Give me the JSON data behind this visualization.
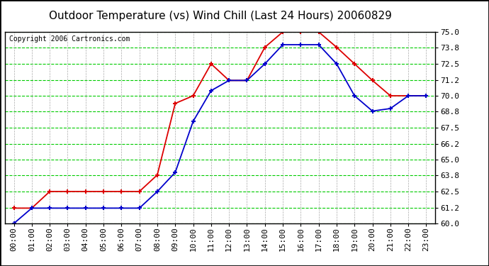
{
  "title": "Outdoor Temperature (vs) Wind Chill (Last 24 Hours) 20060829",
  "copyright": "Copyright 2006 Cartronics.com",
  "hours": [
    "00:00",
    "01:00",
    "02:00",
    "03:00",
    "04:00",
    "05:00",
    "06:00",
    "07:00",
    "08:00",
    "09:00",
    "10:00",
    "11:00",
    "12:00",
    "13:00",
    "14:00",
    "15:00",
    "16:00",
    "17:00",
    "18:00",
    "19:00",
    "20:00",
    "21:00",
    "22:00",
    "23:00"
  ],
  "outdoor_temp": [
    61.2,
    61.2,
    62.5,
    62.5,
    62.5,
    62.5,
    62.5,
    62.5,
    63.8,
    69.4,
    70.0,
    72.5,
    71.2,
    71.2,
    73.8,
    75.0,
    75.0,
    75.0,
    73.8,
    72.5,
    71.2,
    70.0,
    70.0,
    70.0
  ],
  "wind_chill": [
    60.0,
    61.2,
    61.2,
    61.2,
    61.2,
    61.2,
    61.2,
    61.2,
    62.5,
    64.0,
    68.0,
    70.4,
    71.2,
    71.2,
    72.5,
    74.0,
    74.0,
    74.0,
    72.5,
    70.0,
    68.8,
    69.0,
    70.0,
    70.0
  ],
  "temp_color": "#dd0000",
  "chill_color": "#0000cc",
  "marker": "+",
  "markersize": 5,
  "markeredgewidth": 1.5,
  "linewidth": 1.3,
  "ylim": [
    60.0,
    75.0
  ],
  "yticks": [
    60.0,
    61.2,
    62.5,
    63.8,
    65.0,
    66.2,
    67.5,
    68.8,
    70.0,
    71.2,
    72.5,
    73.8,
    75.0
  ],
  "bg_color": "#ffffff",
  "plot_bg": "#ffffff",
  "grid_h_color": "#00cc00",
  "grid_v_color": "#aaaaaa",
  "title_fontsize": 11,
  "copyright_fontsize": 7,
  "tick_fontsize": 8,
  "fig_width": 6.9,
  "fig_height": 3.75,
  "dpi": 100
}
